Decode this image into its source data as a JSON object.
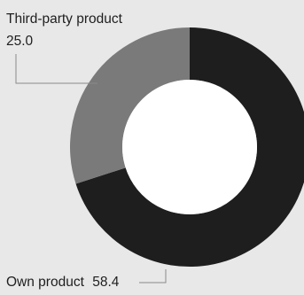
{
  "chart_data": {
    "type": "pie",
    "donut": true,
    "slices": [
      {
        "label": "Third-party product",
        "value": 25.0,
        "value_text": "25.0",
        "color": "#7a7a7a"
      },
      {
        "label": "Own product",
        "value": 58.4,
        "value_text": "58.4",
        "color": "#1e1e1e"
      }
    ],
    "legend": "none",
    "colors": {
      "background": "#e8e8e8",
      "hole": "#ffffff",
      "text": "#1e1e1e",
      "leader": "#8a8a8a"
    }
  }
}
